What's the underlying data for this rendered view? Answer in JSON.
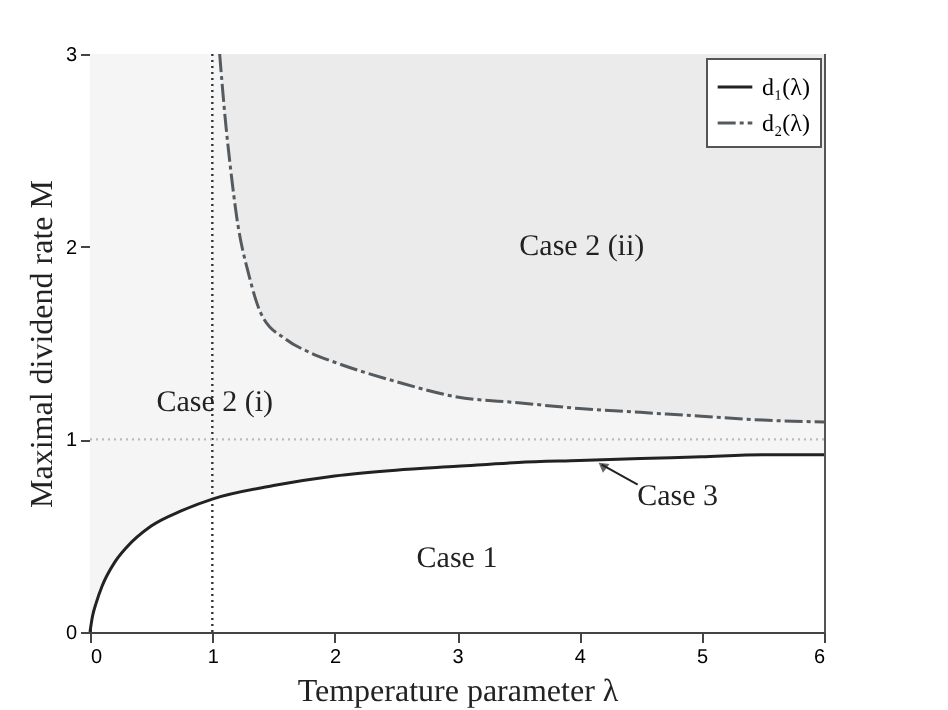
{
  "chart_data": {
    "type": "line",
    "xlabel": "Temperature parameter λ",
    "ylabel": "Maximal dividend rate M",
    "xlim": [
      0,
      6
    ],
    "ylim": [
      0,
      3
    ],
    "xticks": [
      0,
      1,
      2,
      3,
      4,
      5,
      6
    ],
    "yticks": [
      0,
      1,
      2,
      3
    ],
    "grid": false,
    "legend": "top right",
    "series": [
      {
        "name": "d₁(λ)",
        "color": "#222222",
        "line_style": "solid",
        "x": [
          0,
          0.02,
          0.05,
          0.1,
          0.2,
          0.3,
          0.5,
          0.75,
          1,
          1.5,
          2,
          2.5,
          3,
          3.5,
          4,
          4.5,
          5,
          5.5,
          6
        ],
        "values": [
          0,
          0.08,
          0.15,
          0.24,
          0.36,
          0.44,
          0.55,
          0.63,
          0.69,
          0.76,
          0.81,
          0.84,
          0.86,
          0.88,
          0.89,
          0.9,
          0.91,
          0.92,
          0.92
        ],
        "lower": [
          0,
          0.08,
          0.15,
          0.24,
          0.36,
          0.44,
          0.55,
          0.63,
          0.69,
          0.76,
          0.81,
          0.84,
          0.86,
          0.88,
          0.89,
          0.9,
          0.91,
          0.92,
          0.92
        ],
        "upper": [
          3,
          3,
          3,
          3,
          3,
          3,
          3,
          3,
          3,
          3,
          3,
          3,
          3,
          3,
          3,
          3,
          3,
          3,
          3
        ]
      },
      {
        "name": "d₂(λ)",
        "color": "#555a5f",
        "line_style": "dashed",
        "x": [
          1.06,
          1.1,
          1.15,
          1.2,
          1.3,
          1.4,
          1.6,
          1.8,
          2,
          2.5,
          3,
          3.5,
          4,
          4.5,
          5,
          5.5,
          6
        ],
        "values": [
          3,
          2.7,
          2.4,
          2.15,
          1.85,
          1.65,
          1.52,
          1.45,
          1.4,
          1.3,
          1.22,
          1.19,
          1.16,
          1.14,
          1.12,
          1.1,
          1.09
        ],
        "lower": [
          3,
          2.7,
          2.4,
          2.15,
          1.85,
          1.65,
          1.52,
          1.45,
          1.4,
          1.3,
          1.22,
          1.19,
          1.16,
          1.14,
          1.12,
          1.1,
          1.09
        ],
        "upper": [
          3,
          3,
          3,
          3,
          3,
          3,
          3,
          3,
          3,
          3,
          3,
          3,
          3,
          3,
          3,
          3,
          3
        ]
      }
    ],
    "ref_lines": [
      {
        "axis": "x",
        "value": 1,
        "color": "#333333",
        "line_style": "dotted"
      },
      {
        "axis": "y",
        "value": 1,
        "color": "#bbbbbb",
        "line_style": "dotted"
      }
    ],
    "annotations": [
      "Case 2 (ii)",
      "Case 2 (i)",
      "Case 1",
      {
        "text": "Case 3",
        "x": 4.15,
        "y": 0.89
      }
    ]
  }
}
